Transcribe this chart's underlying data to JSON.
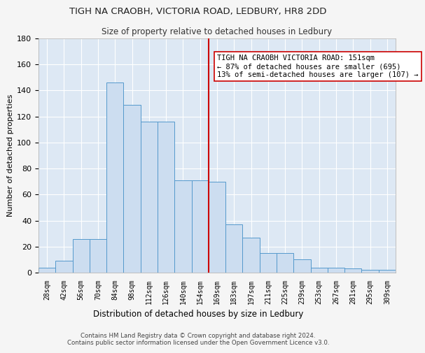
{
  "title1": "TIGH NA CRAOBH, VICTORIA ROAD, LEDBURY, HR8 2DD",
  "title2": "Size of property relative to detached houses in Ledbury",
  "xlabel": "Distribution of detached houses by size in Ledbury",
  "ylabel": "Number of detached properties",
  "bin_labels": [
    "28sqm",
    "42sqm",
    "56sqm",
    "70sqm",
    "84sqm",
    "98sqm",
    "112sqm",
    "126sqm",
    "140sqm",
    "154sqm",
    "169sqm",
    "183sqm",
    "197sqm",
    "211sqm",
    "225sqm",
    "239sqm",
    "253sqm",
    "267sqm",
    "281sqm",
    "295sqm",
    "309sqm"
  ],
  "bar_heights": [
    4,
    9,
    26,
    26,
    146,
    129,
    116,
    116,
    71,
    71,
    70,
    37,
    27,
    15,
    15,
    10,
    4,
    4,
    3,
    2,
    2
  ],
  "bar_color": "#ccddf0",
  "bar_edge_color": "#5599cc",
  "vline_x": 9.5,
  "vline_color": "#cc0000",
  "annotation_line1": "TIGH NA CRAOBH VICTORIA ROAD: 151sqm",
  "annotation_line2": "← 87% of detached houses are smaller (695)",
  "annotation_line3": "13% of semi-detached houses are larger (107) →",
  "annotation_box_color": "#ffffff",
  "annotation_box_edge": "#cc0000",
  "ylim": [
    0,
    180
  ],
  "yticks": [
    0,
    20,
    40,
    60,
    80,
    100,
    120,
    140,
    160,
    180
  ],
  "background_color": "#dde8f4",
  "fig_background": "#f5f5f5",
  "footer_text": "Contains HM Land Registry data © Crown copyright and database right 2024.\nContains public sector information licensed under the Open Government Licence v3.0."
}
